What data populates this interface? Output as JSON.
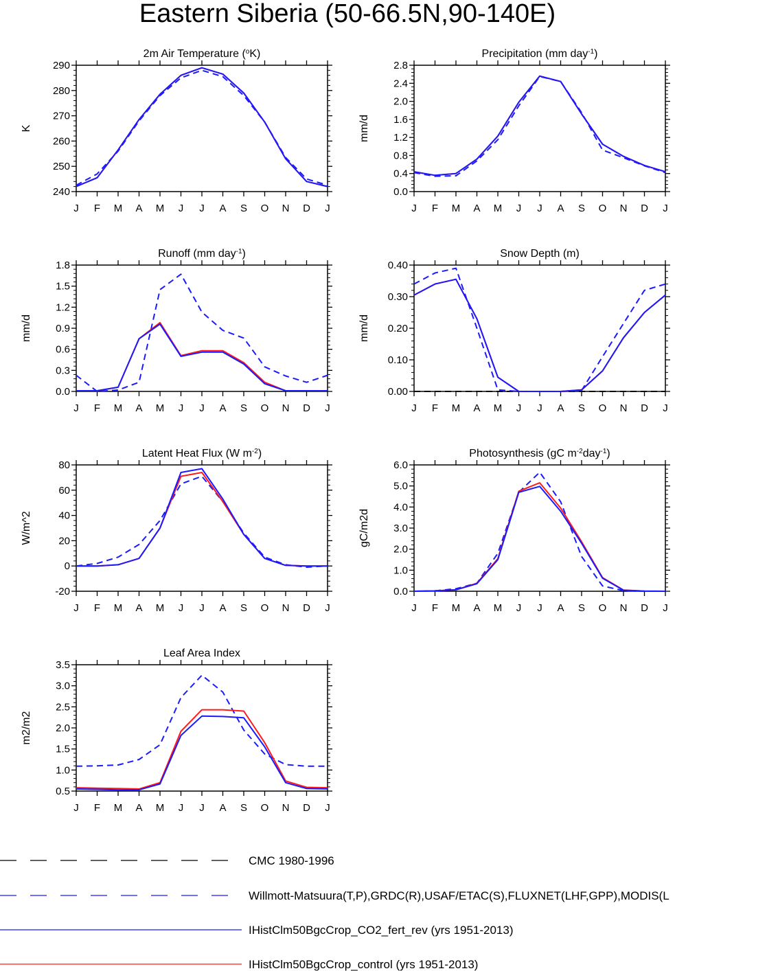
{
  "figure": {
    "title": "Eastern Siberia (50-66.5N,90-140E)"
  },
  "months": [
    "J",
    "F",
    "M",
    "A",
    "M",
    "J",
    "J",
    "A",
    "S",
    "O",
    "N",
    "D",
    "J"
  ],
  "colors": {
    "obs_dash": "#1a1aff",
    "cmc": "#000000",
    "co2": "#1a1aff",
    "control": "#ff1a1a"
  },
  "legend": [
    {
      "key": "cmc",
      "label": "CMC 1980-1996",
      "color": "#000000",
      "dashed": true
    },
    {
      "key": "obs",
      "label": "Willmott-Matsuura(T,P),GRDC(R),USAF/ETAC(S),FLUXNET(LHF,GPP),MODIS(L",
      "color": "#1a1aff",
      "dashed": true
    },
    {
      "key": "co2",
      "label": "IHistClm50BgcCrop_CO2_fert_rev (yrs 1951-2013)",
      "color": "#1a1aff",
      "dashed": false
    },
    {
      "key": "control",
      "label": "IHistClm50BgcCrop_control (yrs 1951-2013)",
      "color": "#ff1a1a",
      "dashed": false
    }
  ],
  "chart_data": [
    {
      "id": "temp",
      "type": "line",
      "title": "2m Air Temperature (",
      "title_sup": "o",
      "title_after": "K)",
      "ylabel": "K",
      "ylim": [
        240,
        290
      ],
      "yticks": [
        240,
        250,
        260,
        270,
        280,
        290
      ],
      "ytick_labels": [
        "240",
        "250",
        "260",
        "270",
        "280",
        "290"
      ],
      "series": [
        {
          "key": "obs",
          "dashed": true,
          "values": [
            242.5,
            247,
            256,
            268,
            278,
            285,
            288,
            285.5,
            278,
            267.5,
            253.5,
            245,
            242.5
          ]
        },
        {
          "key": "control",
          "dashed": false,
          "values": [
            242,
            245.5,
            256.5,
            268.5,
            278.5,
            286,
            289,
            286.5,
            279,
            267.5,
            253,
            244,
            242
          ]
        },
        {
          "key": "co2",
          "dashed": false,
          "values": [
            242,
            245.5,
            256.5,
            268.5,
            278.5,
            286,
            289,
            286.5,
            279,
            267.5,
            253,
            244,
            242
          ]
        }
      ]
    },
    {
      "id": "precip",
      "type": "line",
      "title": "Precipitation (mm day",
      "title_sup": "-1",
      "title_after": ")",
      "ylabel": "mm/d",
      "ylim": [
        0,
        2.8
      ],
      "yticks": [
        0,
        0.4,
        0.8,
        1.2,
        1.6,
        2.0,
        2.4,
        2.8
      ],
      "ytick_labels": [
        "0.0",
        "0.4",
        "0.8",
        "1.2",
        "1.6",
        "2.0",
        "2.4",
        "2.8"
      ],
      "series": [
        {
          "key": "obs",
          "dashed": true,
          "values": [
            0.42,
            0.34,
            0.35,
            0.68,
            1.15,
            1.9,
            2.55,
            2.44,
            1.75,
            0.92,
            0.75,
            0.57,
            0.42
          ]
        },
        {
          "key": "control",
          "dashed": false,
          "values": [
            0.44,
            0.36,
            0.4,
            0.72,
            1.23,
            1.98,
            2.56,
            2.44,
            1.72,
            1.05,
            0.78,
            0.58,
            0.44
          ]
        },
        {
          "key": "co2",
          "dashed": false,
          "values": [
            0.44,
            0.36,
            0.4,
            0.72,
            1.23,
            1.98,
            2.56,
            2.44,
            1.72,
            1.05,
            0.78,
            0.58,
            0.44
          ]
        }
      ]
    },
    {
      "id": "runoff",
      "type": "line",
      "title": "Runoff (mm day",
      "title_sup": "-1",
      "title_after": ")",
      "ylabel": "mm/d",
      "ylim": [
        0,
        1.8
      ],
      "yticks": [
        0,
        0.3,
        0.6,
        0.9,
        1.2,
        1.5,
        1.8
      ],
      "ytick_labels": [
        "0.0",
        "0.3",
        "0.6",
        "0.9",
        "1.2",
        "1.5",
        "1.8"
      ],
      "series": [
        {
          "key": "obs",
          "dashed": true,
          "values": [
            0.23,
            0.0,
            0.02,
            0.13,
            1.45,
            1.67,
            1.13,
            0.87,
            0.76,
            0.35,
            0.22,
            0.13,
            0.23
          ]
        },
        {
          "key": "control",
          "dashed": false,
          "values": [
            0.01,
            0.01,
            0.06,
            0.75,
            0.98,
            0.51,
            0.58,
            0.58,
            0.41,
            0.13,
            0.01,
            0.01,
            0.01
          ]
        },
        {
          "key": "co2",
          "dashed": false,
          "values": [
            0.01,
            0.01,
            0.06,
            0.75,
            0.96,
            0.5,
            0.56,
            0.56,
            0.39,
            0.11,
            0.01,
            0.01,
            0.01
          ]
        }
      ]
    },
    {
      "id": "snow",
      "type": "line",
      "title": "Snow Depth (m)",
      "title_sup": "",
      "title_after": "",
      "ylabel": "mm/d",
      "ylim": [
        0,
        0.4
      ],
      "yticks": [
        0,
        0.1,
        0.2,
        0.3,
        0.4
      ],
      "ytick_labels": [
        "0.00",
        "0.10",
        "0.20",
        "0.30",
        "0.40"
      ],
      "series": [
        {
          "key": "cmc",
          "dashed": true,
          "values": [
            0,
            0,
            0,
            0,
            0,
            0,
            0,
            0,
            0,
            0,
            0,
            0,
            0
          ]
        },
        {
          "key": "obs",
          "dashed": true,
          "values": [
            0.34,
            0.375,
            0.39,
            0.2,
            0.005,
            0,
            0,
            0,
            0.003,
            0.11,
            0.215,
            0.32,
            0.34
          ]
        },
        {
          "key": "control",
          "dashed": false,
          "values": [
            0.305,
            0.34,
            0.355,
            0.23,
            0.045,
            0,
            0,
            0,
            0.005,
            0.065,
            0.17,
            0.25,
            0.305
          ]
        },
        {
          "key": "co2",
          "dashed": false,
          "values": [
            0.305,
            0.34,
            0.355,
            0.23,
            0.045,
            0,
            0,
            0,
            0.005,
            0.065,
            0.17,
            0.25,
            0.305
          ]
        }
      ]
    },
    {
      "id": "lhf",
      "type": "line",
      "title": "Latent Heat Flux (W m",
      "title_sup": "-2",
      "title_after": ")",
      "ylabel": "W/m^2",
      "ylim": [
        -20,
        80
      ],
      "yticks": [
        -20,
        0,
        20,
        40,
        60,
        80
      ],
      "ytick_labels": [
        "-20",
        "0",
        "20",
        "40",
        "60",
        "80"
      ],
      "series": [
        {
          "key": "obs",
          "dashed": true,
          "values": [
            0,
            2,
            7,
            17,
            36,
            65,
            71,
            51,
            26,
            7,
            1,
            -1,
            0
          ]
        },
        {
          "key": "control",
          "dashed": false,
          "values": [
            0,
            0,
            1,
            6,
            30,
            71,
            74,
            51,
            25,
            6,
            0.5,
            0,
            0
          ]
        },
        {
          "key": "co2",
          "dashed": false,
          "values": [
            0,
            0,
            1,
            6,
            30,
            74,
            77,
            53,
            25,
            6,
            0.5,
            0,
            0
          ]
        }
      ]
    },
    {
      "id": "gpp",
      "type": "line",
      "title": "Photosynthesis (gC m",
      "title_sup": "-2",
      "title_after": "day",
      "title_sup2": "-1",
      "title_after2": ")",
      "ylabel": "gC/m2d",
      "ylim": [
        0,
        6
      ],
      "yticks": [
        0,
        1,
        2,
        3,
        4,
        5,
        6
      ],
      "ytick_labels": [
        "0.0",
        "1.0",
        "2.0",
        "3.0",
        "4.0",
        "5.0",
        "6.0"
      ],
      "series": [
        {
          "key": "obs",
          "dashed": true,
          "values": [
            0,
            0.02,
            0.12,
            0.38,
            1.8,
            4.7,
            5.65,
            4.25,
            1.65,
            0.25,
            0.03,
            0,
            0
          ]
        },
        {
          "key": "control",
          "dashed": false,
          "values": [
            0,
            0.02,
            0.07,
            0.38,
            1.55,
            4.75,
            5.15,
            3.95,
            2.35,
            0.65,
            0.06,
            0.01,
            0
          ]
        },
        {
          "key": "co2",
          "dashed": false,
          "values": [
            0,
            0.02,
            0.07,
            0.36,
            1.5,
            4.7,
            4.98,
            3.8,
            2.28,
            0.62,
            0.05,
            0.01,
            0
          ]
        }
      ]
    },
    {
      "id": "lai",
      "type": "line",
      "title": "Leaf Area Index",
      "title_sup": "",
      "title_after": "",
      "ylabel": "m2/m2",
      "ylim": [
        0.5,
        3.5
      ],
      "yticks": [
        0.5,
        1.0,
        1.5,
        2.0,
        2.5,
        3.0,
        3.5
      ],
      "ytick_labels": [
        "0.5",
        "1.0",
        "1.5",
        "2.0",
        "2.5",
        "3.0",
        "3.5"
      ],
      "series": [
        {
          "key": "obs",
          "dashed": true,
          "values": [
            1.09,
            1.1,
            1.12,
            1.25,
            1.6,
            2.72,
            3.25,
            2.85,
            1.95,
            1.38,
            1.13,
            1.09,
            1.09
          ]
        },
        {
          "key": "control",
          "dashed": false,
          "values": [
            0.58,
            0.57,
            0.56,
            0.55,
            0.7,
            1.92,
            2.43,
            2.43,
            2.4,
            1.65,
            0.74,
            0.59,
            0.58
          ]
        },
        {
          "key": "co2",
          "dashed": false,
          "values": [
            0.55,
            0.54,
            0.53,
            0.53,
            0.67,
            1.82,
            2.28,
            2.27,
            2.24,
            1.55,
            0.7,
            0.56,
            0.55
          ]
        }
      ]
    }
  ]
}
